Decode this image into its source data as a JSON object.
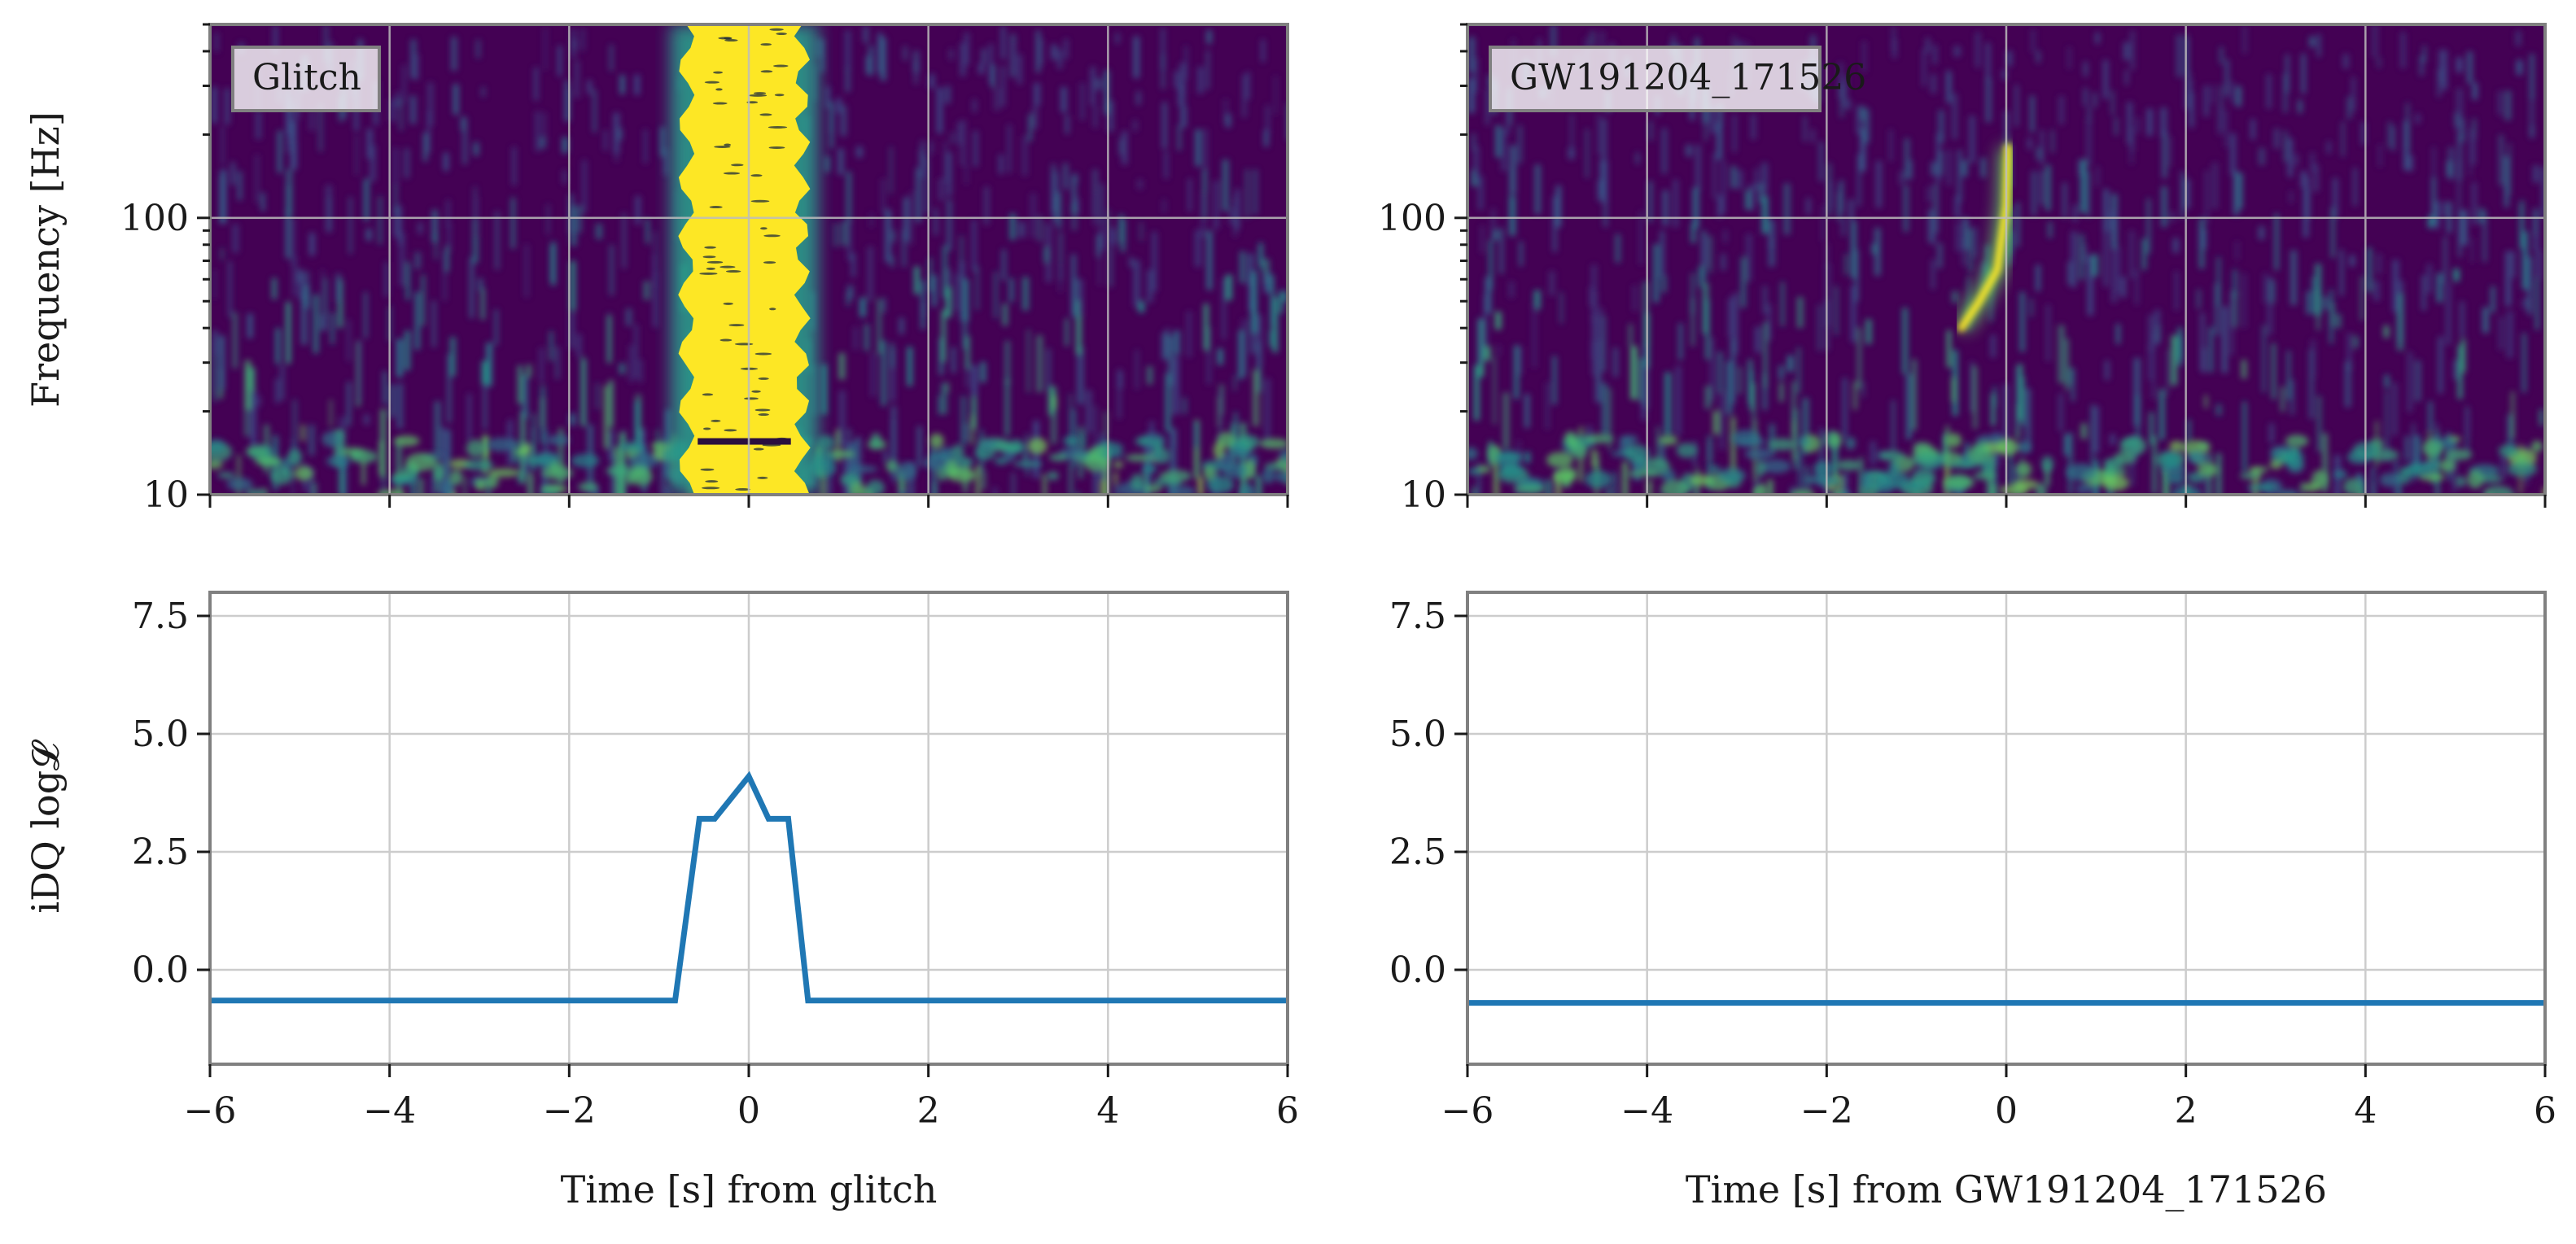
{
  "chart_data": [
    {
      "type": "heatmap",
      "panel": "top-left",
      "legend_label": "Glitch",
      "ylabel": "Frequency [Hz]",
      "yscale": "log",
      "ylim": [
        10,
        500
      ],
      "xlim": [
        -6,
        6
      ],
      "y_ticks": [
        10,
        100
      ],
      "y_tick_labels": [
        "10",
        "100"
      ],
      "colormap": "viridis",
      "features": [
        {
          "kind": "glitch-blob",
          "t_min": -0.75,
          "t_max": 0.65,
          "f_min": 10,
          "f_max": 500,
          "description": "saturated broadband excess power"
        }
      ]
    },
    {
      "type": "heatmap",
      "panel": "top-right",
      "legend_label": "GW191204_171526",
      "ylabel": "",
      "yscale": "log",
      "ylim": [
        10,
        500
      ],
      "xlim": [
        -6,
        6
      ],
      "y_ticks": [
        10,
        100
      ],
      "y_tick_labels": [
        "10",
        "100"
      ],
      "colormap": "viridis",
      "features": [
        {
          "kind": "chirp",
          "points": [
            [
              -0.5,
              40
            ],
            [
              -0.3,
              50
            ],
            [
              -0.1,
              65
            ],
            [
              0.0,
              110
            ],
            [
              0.02,
              180
            ]
          ]
        }
      ]
    },
    {
      "type": "line",
      "panel": "bottom-left",
      "ylabel": "iDQ log𝓛",
      "xlabel": "Time [s] from glitch",
      "xlim": [
        -6,
        6
      ],
      "ylim": [
        -2.0,
        8.0
      ],
      "x_ticks": [
        -6,
        -4,
        -2,
        0,
        2,
        4,
        6
      ],
      "x_tick_labels": [
        "−6",
        "−4",
        "−2",
        "0",
        "2",
        "4",
        "6"
      ],
      "y_ticks": [
        0,
        2.5,
        5.0,
        7.5
      ],
      "y_tick_labels": [
        "0.0",
        "2.5",
        "5.0",
        "7.5"
      ],
      "grid": true,
      "series": [
        {
          "name": "iDQ log-likelihood",
          "color": "#1f77b4",
          "x": [
            -6,
            -0.82,
            -0.55,
            -0.38,
            0.0,
            0.22,
            0.44,
            0.66,
            6
          ],
          "y": [
            -0.65,
            -0.65,
            3.2,
            3.2,
            4.1,
            3.2,
            3.2,
            -0.65,
            -0.65
          ]
        }
      ]
    },
    {
      "type": "line",
      "panel": "bottom-right",
      "ylabel": "",
      "xlabel": "Time [s] from GW191204_171526",
      "xlim": [
        -6,
        6
      ],
      "ylim": [
        -2.0,
        8.0
      ],
      "x_ticks": [
        -6,
        -4,
        -2,
        0,
        2,
        4,
        6
      ],
      "x_tick_labels": [
        "−6",
        "−4",
        "−2",
        "0",
        "2",
        "4",
        "6"
      ],
      "y_ticks": [
        0,
        2.5,
        5.0,
        7.5
      ],
      "y_tick_labels": [
        "0.0",
        "2.5",
        "5.0",
        "7.5"
      ],
      "grid": true,
      "series": [
        {
          "name": "iDQ log-likelihood",
          "color": "#1f77b4",
          "x": [
            -6,
            6
          ],
          "y": [
            -0.7,
            -0.7
          ]
        }
      ]
    }
  ]
}
